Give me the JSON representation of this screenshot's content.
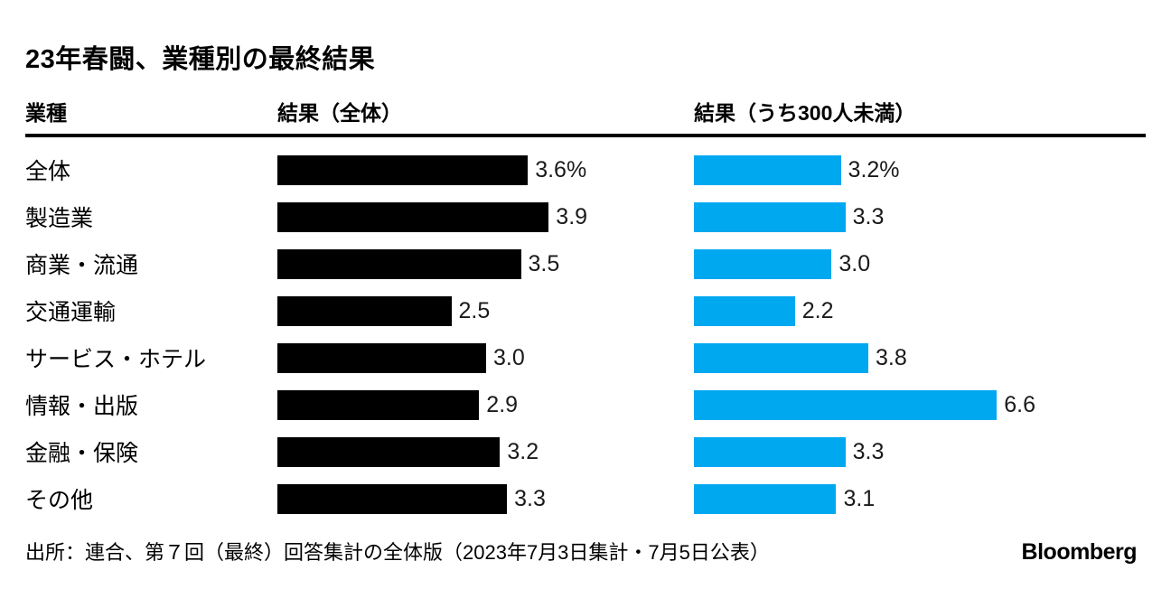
{
  "title": "23年春闘、業種別の最終結果",
  "columns": {
    "industry": "業種",
    "overall": "結果（全体）",
    "small": "結果（うち300人未満）"
  },
  "colors": {
    "overall_bar": "#000000",
    "small_bar": "#00a8f0",
    "text": "#000000"
  },
  "source": "出所：連合、第７回（最終）回答集計の全体版（2023年7月3日集計・7月5日公表）",
  "brand": "Bloomberg",
  "chart_data": {
    "type": "bar",
    "orientation": "horizontal",
    "title": "23年春闘、業種別の最終結果",
    "xlabel": "",
    "ylabel": "業種",
    "unit": "%",
    "xlim": [
      0,
      7
    ],
    "grid": false,
    "legend_position": "column-headers",
    "categories": [
      "全体",
      "製造業",
      "商業・流通",
      "交通運輸",
      "サービス・ホテル",
      "情報・出版",
      "金融・保険",
      "その他"
    ],
    "series": [
      {
        "name": "結果（全体）",
        "color": "#000000",
        "values": [
          3.6,
          3.9,
          3.5,
          2.5,
          3.0,
          2.9,
          3.2,
          3.3
        ],
        "labels": [
          "3.6%",
          "3.9",
          "3.5",
          "2.5",
          "3.0",
          "2.9",
          "3.2",
          "3.3"
        ]
      },
      {
        "name": "結果（うち300人未満）",
        "color": "#00a8f0",
        "values": [
          3.2,
          3.3,
          3.0,
          2.2,
          3.8,
          6.6,
          3.3,
          3.1
        ],
        "labels": [
          "3.2%",
          "3.3",
          "3.0",
          "2.2",
          "3.8",
          "6.6",
          "3.3",
          "3.1"
        ]
      }
    ]
  }
}
